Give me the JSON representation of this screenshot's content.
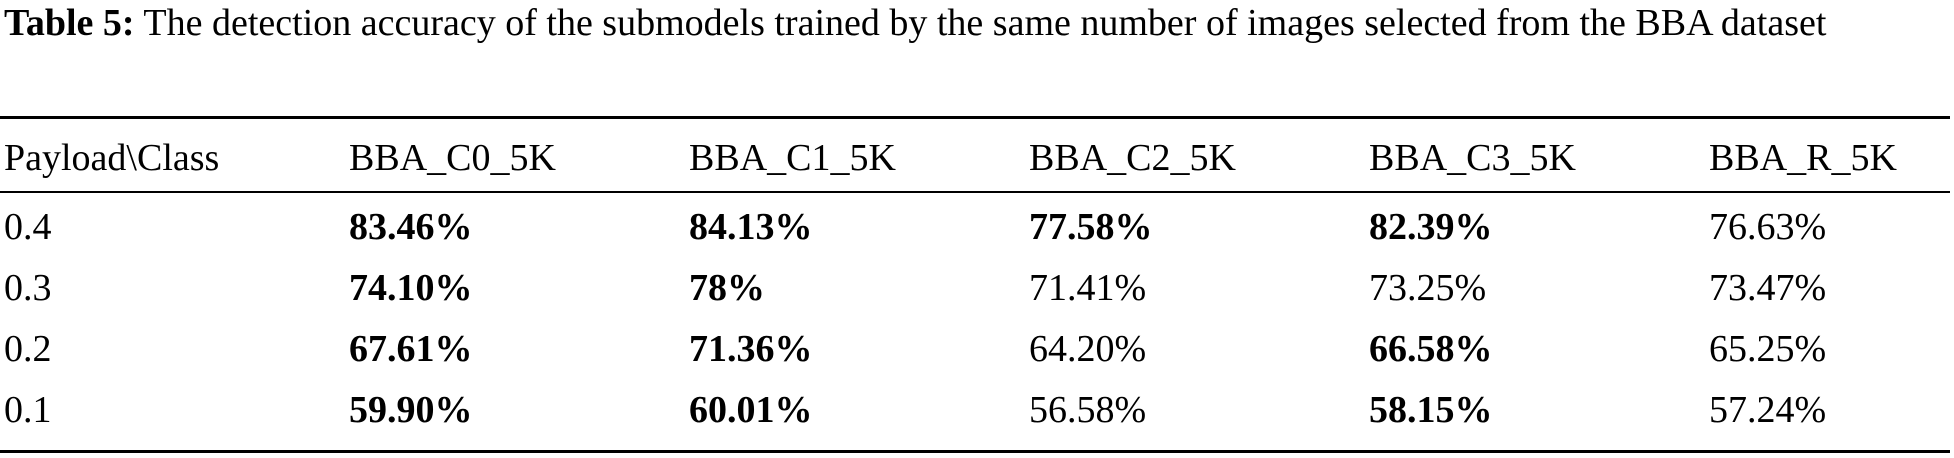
{
  "caption": {
    "label": "Table 5:",
    "text": " The detection accuracy of the submodels trained by the same number of images selected from the BBA dataset"
  },
  "table": {
    "headers": [
      "Payload\\Class",
      "BBA_C0_5K",
      "BBA_C1_5K",
      "BBA_C2_5K",
      "BBA_C3_5K",
      "BBA_R_5K"
    ],
    "rows": [
      {
        "cells": [
          "0.4",
          "83.46%",
          "84.13%",
          "77.58%",
          "82.39%",
          "76.63%"
        ],
        "bold": [
          false,
          true,
          true,
          true,
          true,
          false
        ]
      },
      {
        "cells": [
          "0.3",
          "74.10%",
          "78%",
          "71.41%",
          "73.25%",
          "73.47%"
        ],
        "bold": [
          false,
          true,
          true,
          false,
          false,
          false
        ]
      },
      {
        "cells": [
          "0.2",
          "67.61%",
          "71.36%",
          "64.20%",
          "66.58%",
          "65.25%"
        ],
        "bold": [
          false,
          true,
          true,
          false,
          true,
          false
        ]
      },
      {
        "cells": [
          "0.1",
          "59.90%",
          "60.01%",
          "56.58%",
          "58.15%",
          "57.24%"
        ],
        "bold": [
          false,
          true,
          true,
          false,
          true,
          false
        ]
      }
    ]
  }
}
